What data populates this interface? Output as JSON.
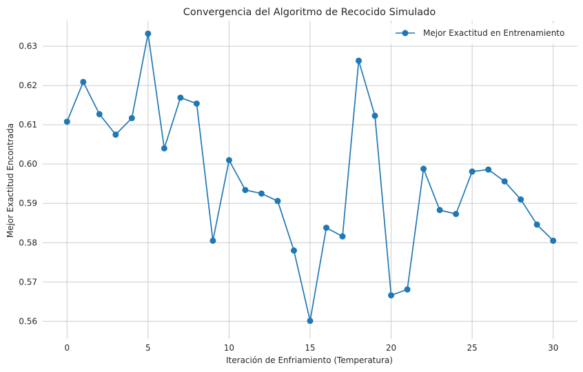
{
  "chart_data": {
    "type": "line",
    "title": "Convergencia del Algoritmo de Recocido Simulado",
    "xlabel": "Iteración de Enfriamiento (Temperatura)",
    "ylabel": "Mejor Exactitud Encontrada",
    "xlim": [
      -1.5,
      31.5
    ],
    "ylim": [
      0.5555,
      0.6365
    ],
    "xticks": [
      0,
      5,
      10,
      15,
      20,
      25,
      30
    ],
    "yticks": [
      0.56,
      0.57,
      0.58,
      0.59,
      0.6,
      0.61,
      0.62,
      0.63
    ],
    "grid": true,
    "legend_position": "top-right",
    "series": [
      {
        "name": "Mejor Exactitud en Entrenamiento",
        "color": "#1f77b4",
        "marker": "circle",
        "x": [
          0,
          1,
          2,
          3,
          4,
          5,
          6,
          7,
          8,
          9,
          10,
          11,
          12,
          13,
          14,
          15,
          16,
          17,
          18,
          19,
          20,
          21,
          22,
          23,
          24,
          25,
          26,
          27,
          28,
          29,
          30
        ],
        "values": [
          0.6108,
          0.6209,
          0.6127,
          0.6075,
          0.6117,
          0.6332,
          0.604,
          0.6169,
          0.6154,
          0.5805,
          0.601,
          0.5934,
          0.5925,
          0.5906,
          0.578,
          0.5601,
          0.5838,
          0.5816,
          0.6263,
          0.6123,
          0.5666,
          0.5681,
          0.5988,
          0.5883,
          0.5873,
          0.5981,
          0.5986,
          0.5956,
          0.591,
          0.5846,
          0.5805
        ]
      }
    ]
  }
}
